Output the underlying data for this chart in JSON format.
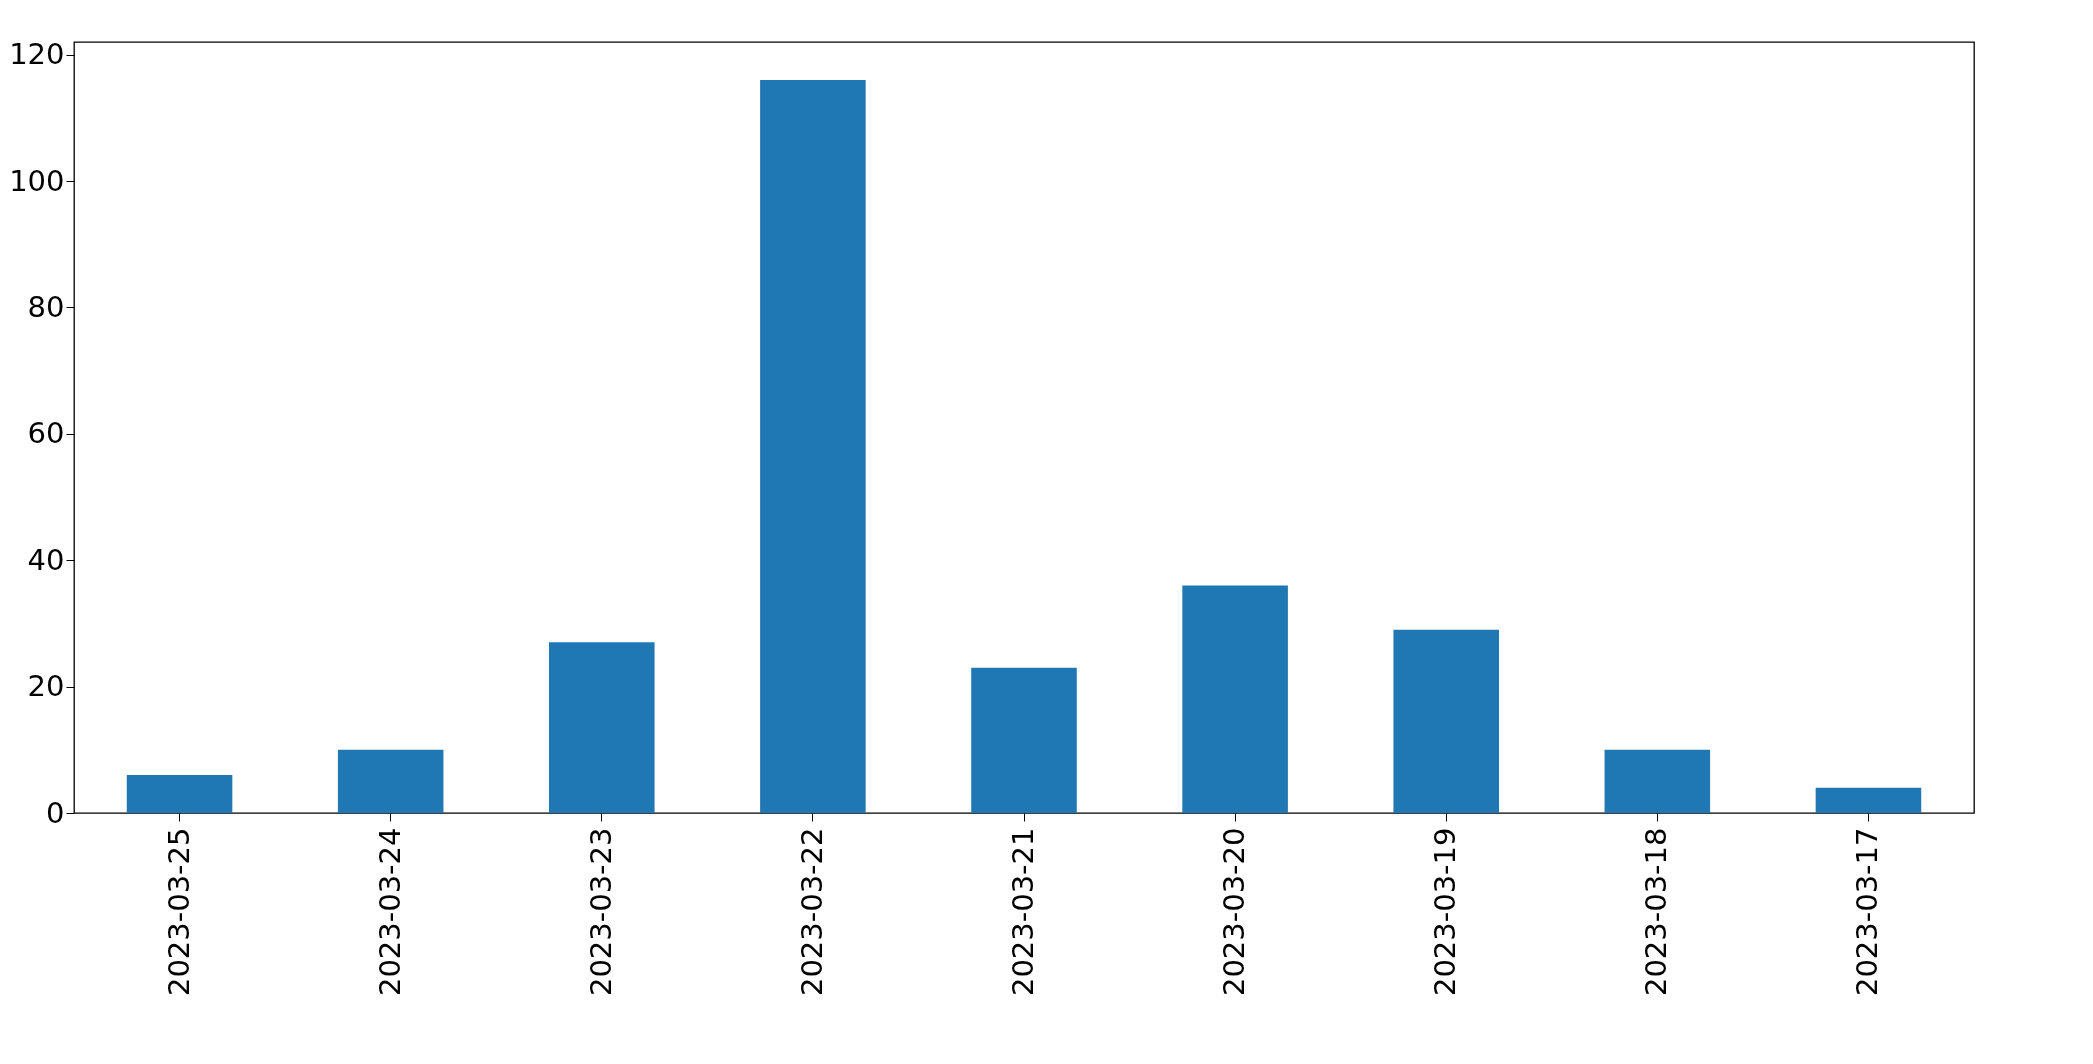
{
  "chart_data": {
    "type": "bar",
    "categories": [
      "2023-03-25",
      "2023-03-24",
      "2023-03-23",
      "2023-03-22",
      "2023-03-21",
      "2023-03-20",
      "2023-03-19",
      "2023-03-18",
      "2023-03-17"
    ],
    "values": [
      6,
      10,
      27,
      116,
      23,
      36,
      29,
      10,
      4
    ],
    "color": "#1f77b4",
    "ylim": [
      0,
      122
    ],
    "yticks": [
      0,
      20,
      40,
      60,
      80,
      100,
      120
    ],
    "grid": false
  }
}
